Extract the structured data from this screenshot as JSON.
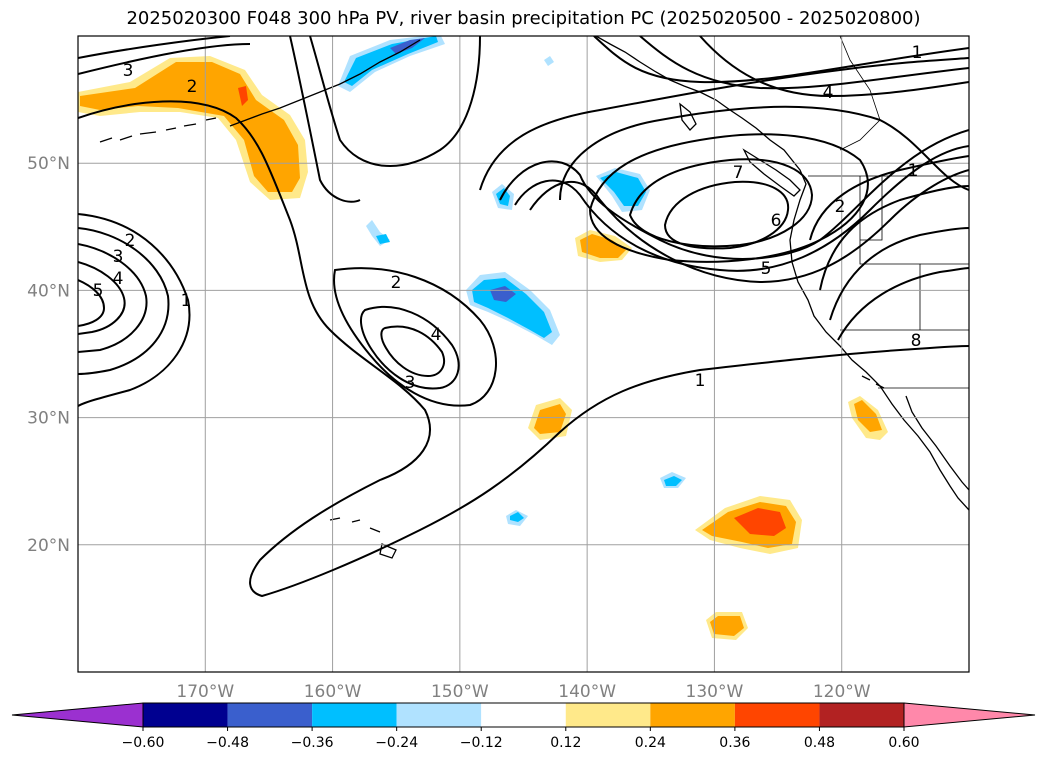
{
  "title": "2025020300 F048 300 hPa PV, river basin precipitation PC (2025020500 - 2025020800)",
  "map": {
    "projection": "equirectangular",
    "lon_range": [
      -180,
      -110
    ],
    "lat_range": [
      10,
      60
    ],
    "lat_labels": [
      "20°N",
      "30°N",
      "40°N",
      "50°N"
    ],
    "lat_values": [
      20,
      30,
      40,
      50
    ],
    "lon_labels": [
      "170°W",
      "160°W",
      "150°W",
      "140°W",
      "130°W",
      "120°W"
    ],
    "lon_values": [
      -170,
      -160,
      -150,
      -140,
      -130,
      -120
    ],
    "gridlines": true,
    "grid_color": "#a0a0a0"
  },
  "pv_contour_labels": [
    "1",
    "1",
    "1",
    "1",
    "2",
    "2",
    "2",
    "2",
    "3",
    "3",
    "3",
    "4",
    "4",
    "4",
    "5",
    "5",
    "6",
    "7",
    "8"
  ],
  "colorbar": {
    "extend": "both",
    "tick_labels": [
      "−0.60",
      "−0.48",
      "−0.36",
      "−0.24",
      "−0.12",
      "0.12",
      "0.24",
      "0.36",
      "0.48",
      "0.60"
    ],
    "colors": [
      "#9b30d0",
      "#000090",
      "#3a5fcd",
      "#00bfff",
      "#b0e2ff",
      "#ffffff",
      "#ffe98a",
      "#ffa500",
      "#ff4500",
      "#b22222",
      "#ff88aa"
    ]
  },
  "colors": {
    "pos_low": "#ffe98a",
    "pos_mid": "#ffa500",
    "pos_high": "#ff4500",
    "neg_low": "#b0e2ff",
    "neg_mid": "#00bfff",
    "neg_high": "#3a5fcd"
  }
}
